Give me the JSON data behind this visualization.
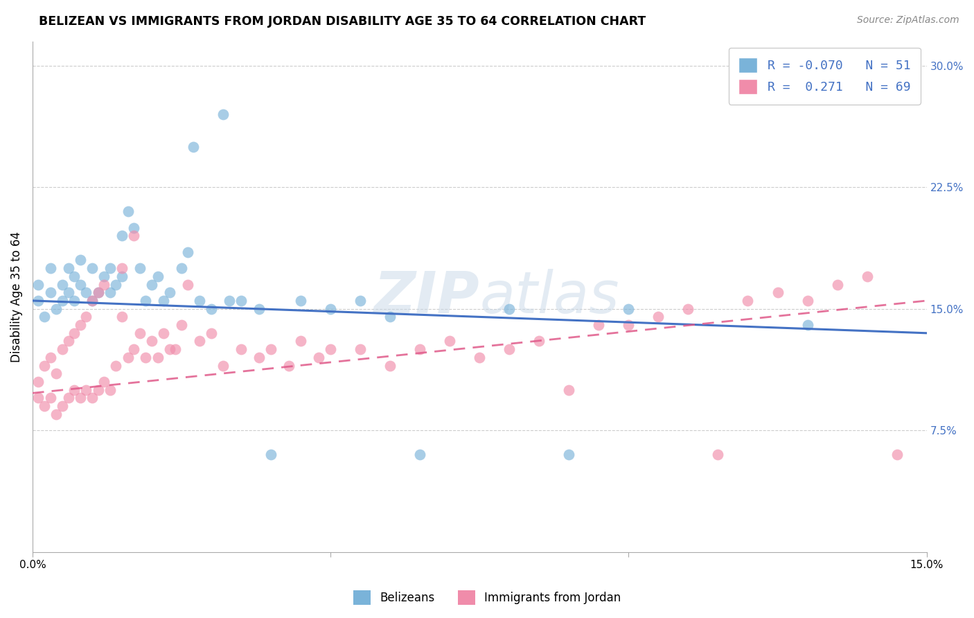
{
  "title": "BELIZEAN VS IMMIGRANTS FROM JORDAN DISABILITY AGE 35 TO 64 CORRELATION CHART",
  "source_text": "Source: ZipAtlas.com",
  "ylabel": "Disability Age 35 to 64",
  "xlim": [
    0.0,
    0.15
  ],
  "ylim": [
    0.0,
    0.315
  ],
  "ytick_labels_right": [
    "7.5%",
    "15.0%",
    "22.5%",
    "30.0%"
  ],
  "ytick_vals_right": [
    0.075,
    0.15,
    0.225,
    0.3
  ],
  "watermark": "ZIPatlas",
  "legend_bottom": [
    "Belizeans",
    "Immigrants from Jordan"
  ],
  "blue_color": "#7ab3d9",
  "pink_color": "#f08caa",
  "blue_line_color": "#4472c4",
  "pink_line_color": "#e05a8a",
  "grid_color": "#cccccc",
  "background_color": "#ffffff",
  "blue_scatter_x": [
    0.001,
    0.001,
    0.002,
    0.003,
    0.003,
    0.004,
    0.005,
    0.005,
    0.006,
    0.006,
    0.007,
    0.007,
    0.008,
    0.008,
    0.009,
    0.01,
    0.01,
    0.011,
    0.012,
    0.013,
    0.013,
    0.014,
    0.015,
    0.015,
    0.016,
    0.017,
    0.018,
    0.019,
    0.02,
    0.021,
    0.022,
    0.023,
    0.025,
    0.026,
    0.027,
    0.028,
    0.03,
    0.032,
    0.033,
    0.035,
    0.038,
    0.04,
    0.045,
    0.05,
    0.055,
    0.06,
    0.065,
    0.08,
    0.09,
    0.1,
    0.13
  ],
  "blue_scatter_y": [
    0.155,
    0.165,
    0.145,
    0.16,
    0.175,
    0.15,
    0.165,
    0.155,
    0.16,
    0.175,
    0.155,
    0.17,
    0.165,
    0.18,
    0.16,
    0.155,
    0.175,
    0.16,
    0.17,
    0.16,
    0.175,
    0.165,
    0.195,
    0.17,
    0.21,
    0.2,
    0.175,
    0.155,
    0.165,
    0.17,
    0.155,
    0.16,
    0.175,
    0.185,
    0.25,
    0.155,
    0.15,
    0.27,
    0.155,
    0.155,
    0.15,
    0.06,
    0.155,
    0.15,
    0.155,
    0.145,
    0.06,
    0.15,
    0.06,
    0.15,
    0.14
  ],
  "pink_scatter_x": [
    0.001,
    0.001,
    0.002,
    0.002,
    0.003,
    0.003,
    0.004,
    0.004,
    0.005,
    0.005,
    0.006,
    0.006,
    0.007,
    0.007,
    0.008,
    0.008,
    0.009,
    0.009,
    0.01,
    0.01,
    0.011,
    0.011,
    0.012,
    0.012,
    0.013,
    0.014,
    0.015,
    0.015,
    0.016,
    0.017,
    0.017,
    0.018,
    0.019,
    0.02,
    0.021,
    0.022,
    0.023,
    0.024,
    0.025,
    0.026,
    0.028,
    0.03,
    0.032,
    0.035,
    0.038,
    0.04,
    0.043,
    0.045,
    0.048,
    0.05,
    0.055,
    0.06,
    0.065,
    0.07,
    0.075,
    0.08,
    0.085,
    0.09,
    0.095,
    0.1,
    0.105,
    0.11,
    0.115,
    0.12,
    0.125,
    0.13,
    0.135,
    0.14,
    0.145
  ],
  "pink_scatter_y": [
    0.095,
    0.105,
    0.09,
    0.115,
    0.095,
    0.12,
    0.085,
    0.11,
    0.09,
    0.125,
    0.095,
    0.13,
    0.1,
    0.135,
    0.095,
    0.14,
    0.1,
    0.145,
    0.095,
    0.155,
    0.1,
    0.16,
    0.105,
    0.165,
    0.1,
    0.115,
    0.145,
    0.175,
    0.12,
    0.195,
    0.125,
    0.135,
    0.12,
    0.13,
    0.12,
    0.135,
    0.125,
    0.125,
    0.14,
    0.165,
    0.13,
    0.135,
    0.115,
    0.125,
    0.12,
    0.125,
    0.115,
    0.13,
    0.12,
    0.125,
    0.125,
    0.115,
    0.125,
    0.13,
    0.12,
    0.125,
    0.13,
    0.1,
    0.14,
    0.14,
    0.145,
    0.15,
    0.06,
    0.155,
    0.16,
    0.155,
    0.165,
    0.17,
    0.06
  ]
}
